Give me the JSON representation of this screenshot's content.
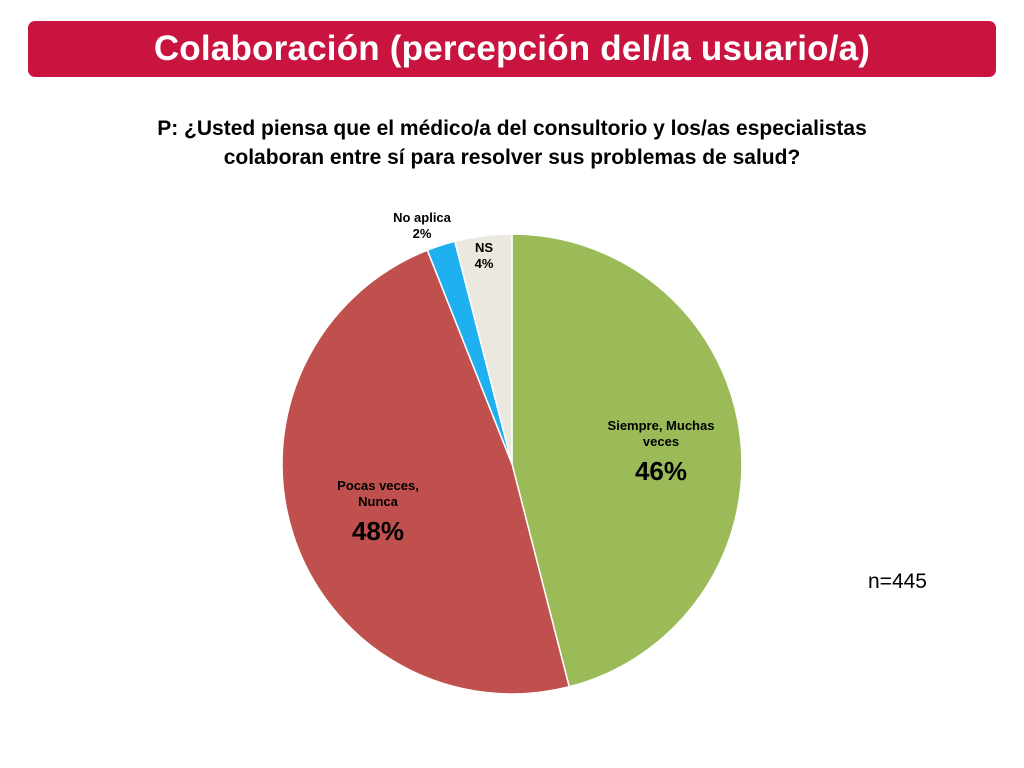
{
  "title": "Colaboración (percepción del/la usuario/a)",
  "question": {
    "line1": "P: ¿Usted piensa que el médico/a del consultorio y los/as especialistas",
    "line2": "colaboran entre sí para resolver sus problemas de salud?"
  },
  "sample_size": "n=445",
  "chart_data": {
    "type": "pie",
    "start": "12 o'clock, clockwise",
    "slices": [
      {
        "label": "Siempre, Muchas veces",
        "label_lines": [
          "Siempre, Muchas",
          "veces"
        ],
        "value": 46,
        "display": "46%",
        "color": "#9bbb59"
      },
      {
        "label": "Pocas veces, Nunca",
        "label_lines": [
          "Pocas veces,",
          "Nunca"
        ],
        "value": 48,
        "display": "48%",
        "color": "#c0504d"
      },
      {
        "label": "No aplica",
        "label_lines": [
          "No aplica"
        ],
        "value": 2,
        "display": "2%",
        "color": "#1fb0f0"
      },
      {
        "label": "NS",
        "label_lines": [
          "NS"
        ],
        "value": 4,
        "display": "4%",
        "color": "#ebe8df"
      }
    ]
  }
}
